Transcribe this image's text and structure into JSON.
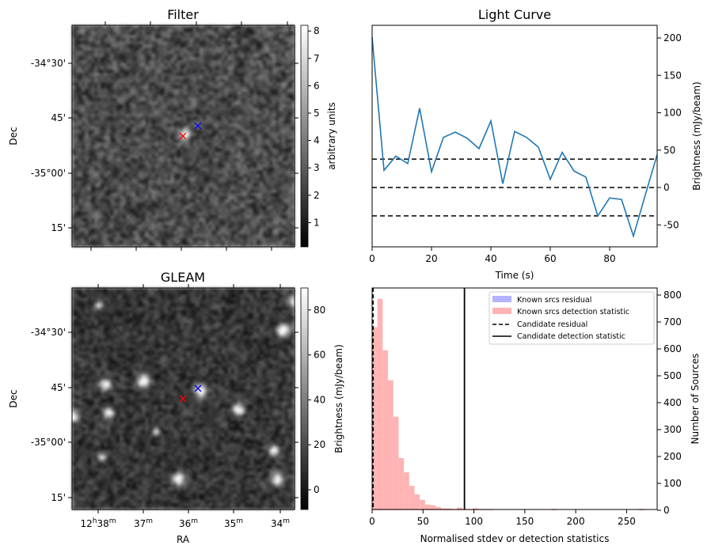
{
  "chart_data": [
    {
      "type": "heatmap",
      "title": "Filter",
      "ylabel": "Dec",
      "yticks": [
        "-34°30'",
        "45'",
        "-35°00'",
        "15'"
      ],
      "colorbar": {
        "label": "arbitrary units",
        "ticks": [
          "1",
          "2",
          "3",
          "4",
          "5",
          "6",
          "7",
          "8"
        ],
        "range": [
          0.1,
          8.2
        ]
      },
      "markers": [
        {
          "color": "#ff0000",
          "symbol": "x"
        },
        {
          "color": "#0000ff",
          "symbol": "x"
        }
      ]
    },
    {
      "type": "line",
      "title": "Light Curve",
      "xlabel": "Time (s)",
      "ylabel": "Brightness (mJy/beam)",
      "xlim": [
        0,
        96
      ],
      "ylim": [
        -67,
        217
      ],
      "xticks": [
        "0",
        "20",
        "40",
        "60",
        "80"
      ],
      "yticks": [
        "-50",
        "0",
        "50",
        "100",
        "150",
        "200"
      ],
      "series": [
        {
          "name": "light curve",
          "color": "#1f77b4",
          "x": [
            0,
            4,
            8,
            12,
            16,
            20,
            24,
            28,
            32,
            36,
            40,
            44,
            48,
            52,
            56,
            60,
            64,
            68,
            72,
            76,
            80,
            84,
            88,
            92,
            96
          ],
          "y": [
            201,
            23,
            42,
            32,
            106,
            21,
            67,
            74,
            66,
            52,
            89,
            5,
            75,
            67,
            54,
            11,
            47,
            22,
            14,
            -38,
            -14,
            -16,
            -65,
            -10,
            44
          ]
        }
      ],
      "hlines": [
        38,
        0,
        -38
      ]
    },
    {
      "type": "heatmap",
      "title": "GLEAM",
      "xlabel": "RA",
      "ylabel": "Dec",
      "xticks": [
        {
          "h": "12",
          "hs": "h",
          "m": "38",
          "ms": "m"
        },
        {
          "m": "37",
          "ms": "m"
        },
        {
          "m": "36",
          "ms": "m"
        },
        {
          "m": "35",
          "ms": "m"
        },
        {
          "m": "34",
          "ms": "m"
        }
      ],
      "yticks": [
        "-34°30'",
        "45'",
        "-35°00'",
        "15'"
      ],
      "colorbar": {
        "label": "Brightness (mJy/beam)",
        "ticks": [
          "0",
          "20",
          "40",
          "60",
          "80"
        ],
        "range": [
          -9,
          89
        ]
      },
      "markers": [
        {
          "color": "#ff0000",
          "symbol": "x"
        },
        {
          "color": "#0000ff",
          "symbol": "x"
        }
      ]
    },
    {
      "type": "bar",
      "subtype": "histogram",
      "xlabel": "Normalised stdev or detection statistics",
      "ylabel": "Number of Sources",
      "xlim": [
        0,
        280
      ],
      "ylim": [
        0,
        820
      ],
      "xticks": [
        "0",
        "50",
        "100",
        "150",
        "200",
        "250"
      ],
      "yticks": [
        "0",
        "100",
        "200",
        "300",
        "400",
        "500",
        "600",
        "700",
        "800"
      ],
      "bin_width": 5.2,
      "bin_start": 0,
      "counts": [
        681,
        786,
        595,
        483,
        348,
        194,
        141,
        91,
        59,
        39,
        21,
        19,
        12,
        7,
        7,
        4,
        10,
        4,
        4,
        7,
        4,
        4,
        4
      ],
      "outliers": [
        {
          "x": 176,
          "count": 5
        },
        {
          "x": 262,
          "count": 5
        }
      ],
      "candidate_residual": 1,
      "candidate_detection_statistic": 90.7,
      "legend": {
        "position": "top-right",
        "entries": [
          {
            "label": "Known srcs residual",
            "color": "#b3b3ff",
            "style": "patch"
          },
          {
            "label": "Known srcs detection statistic",
            "color": "#ffb3b3",
            "style": "patch"
          },
          {
            "label": "Candidate residual",
            "color": "#000000",
            "style": "dashed"
          },
          {
            "label": "Candidate detection statistic",
            "color": "#000000",
            "style": "solid"
          }
        ]
      }
    }
  ]
}
